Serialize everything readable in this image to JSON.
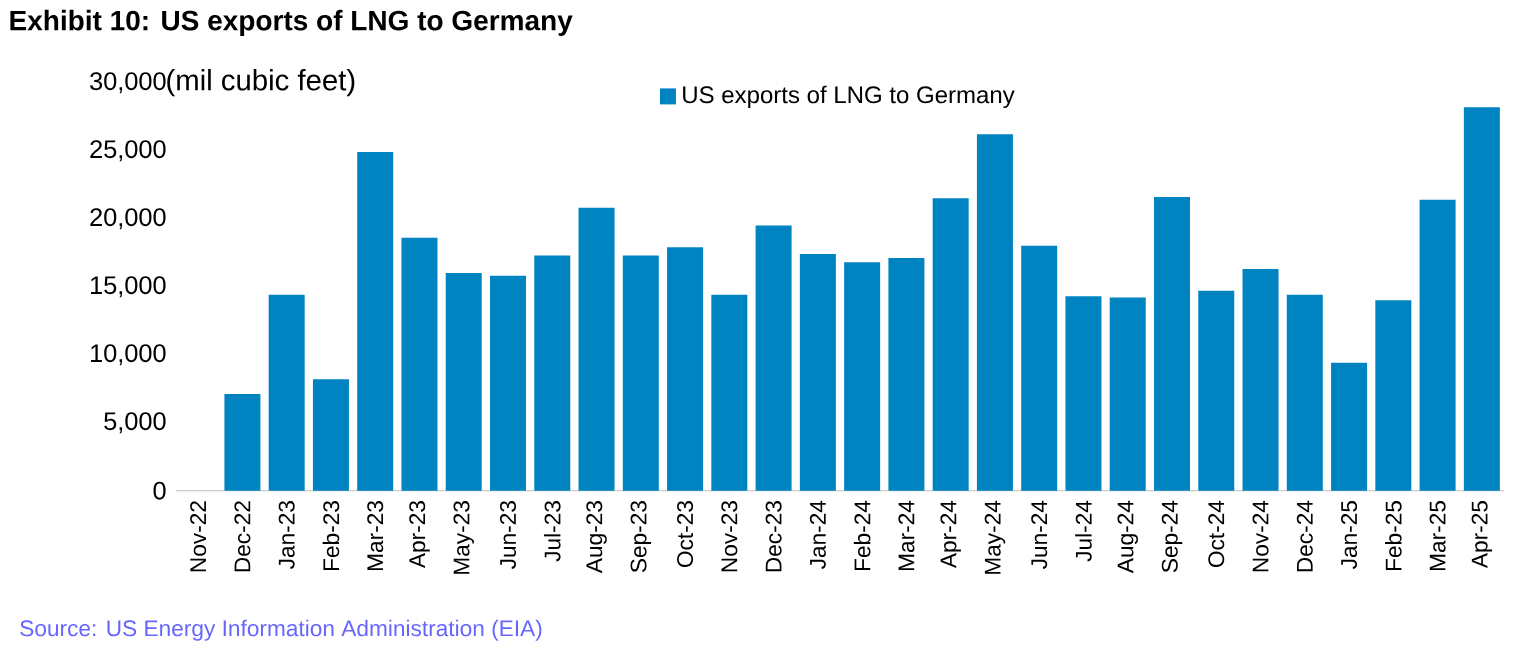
{
  "chart_data": {
    "type": "bar",
    "title": "Exhibit 10: US exports of LNG to Germany",
    "ylabel": "(mil cubic feet)",
    "categories": [
      "Nov-22",
      "Dec-22",
      "Jan-23",
      "Feb-23",
      "Mar-23",
      "Apr-23",
      "May-23",
      "Jun-23",
      "Jul-23",
      "Aug-23",
      "Sep-23",
      "Oct-23",
      "Nov-23",
      "Dec-23",
      "Jan-24",
      "Feb-24",
      "Mar-24",
      "Apr-24",
      "May-24",
      "Jun-24",
      "Jul-24",
      "Aug-24",
      "Sep-24",
      "Oct-24",
      "Nov-24",
      "Dec-24",
      "Jan-25",
      "Feb-25",
      "Mar-25",
      "Apr-25"
    ],
    "series": [
      {
        "name": "US exports of LNG to Germany",
        "color": "#0083c1",
        "values": [
          null,
          7100,
          14400,
          8200,
          24900,
          18600,
          16000,
          15800,
          17300,
          20800,
          17300,
          17900,
          14400,
          19500,
          17400,
          16800,
          17100,
          21500,
          26200,
          18000,
          14300,
          14200,
          21600,
          14700,
          16300,
          14400,
          9400,
          14000,
          21400,
          28200
        ]
      }
    ],
    "ylim": [
      0,
      30000
    ],
    "yticks": [
      {
        "value": 0,
        "label": "0"
      },
      {
        "value": 5000,
        "label": "5,000"
      },
      {
        "value": 10000,
        "label": "10,000"
      },
      {
        "value": 15000,
        "label": "15,000"
      },
      {
        "value": 20000,
        "label": "20,000"
      },
      {
        "value": 25000,
        "label": "25,000"
      },
      {
        "value": 30000,
        "label": "30,000"
      }
    ],
    "legend": "top",
    "annotations": [
      "Source: US Energy Information Administration (EIA)"
    ]
  }
}
